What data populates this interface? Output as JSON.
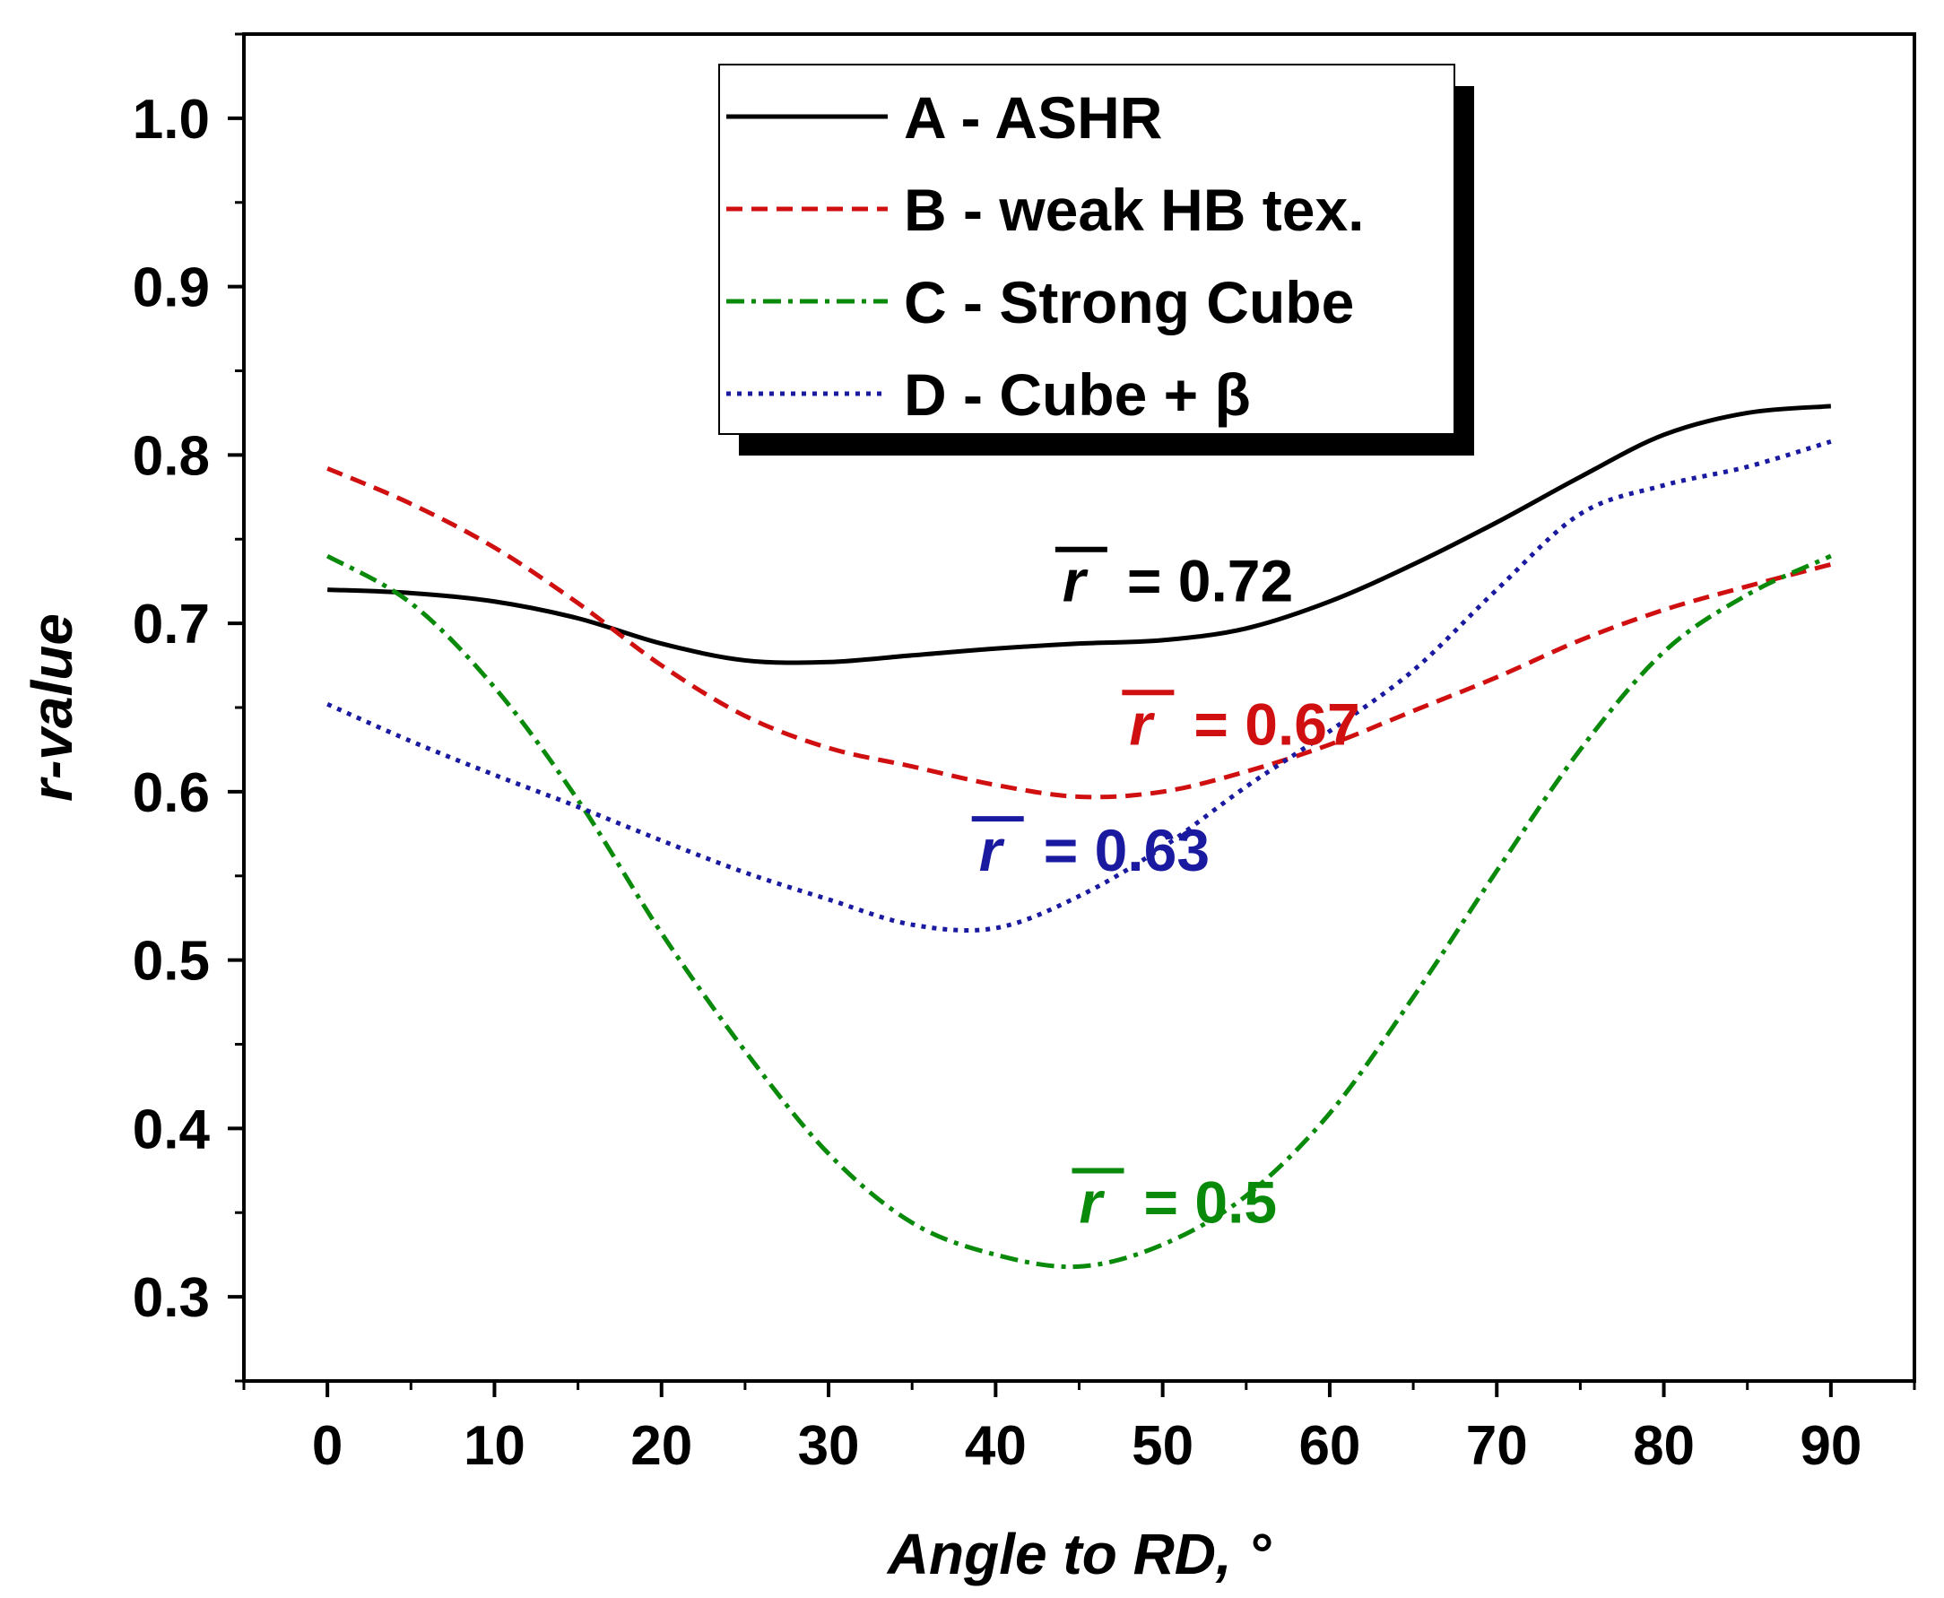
{
  "chart_data": {
    "type": "line",
    "xlabel": "Angle to RD, °",
    "ylabel": "r-value",
    "xlim": [
      -5,
      95
    ],
    "ylim": [
      0.25,
      1.05
    ],
    "xticks": [
      "0",
      "10",
      "20",
      "30",
      "40",
      "50",
      "60",
      "70",
      "80",
      "90"
    ],
    "yticks": [
      "0.3",
      "0.4",
      "0.5",
      "0.6",
      "0.7",
      "0.8",
      "0.9",
      "1.0"
    ],
    "grid": false,
    "legend_position": "top-center",
    "series": [
      {
        "name": "A - ASHR",
        "color": "#000000",
        "style": "solid",
        "x": [
          0,
          5,
          10,
          15,
          20,
          25,
          30,
          35,
          40,
          45,
          50,
          55,
          60,
          65,
          70,
          75,
          80,
          85,
          90
        ],
        "y": [
          0.72,
          0.718,
          0.713,
          0.703,
          0.688,
          0.678,
          0.677,
          0.681,
          0.685,
          0.688,
          0.69,
          0.697,
          0.713,
          0.735,
          0.76,
          0.787,
          0.812,
          0.825,
          0.829
        ]
      },
      {
        "name": "B - weak HB tex.",
        "color": "#d01010",
        "style": "dashed",
        "x": [
          0,
          5,
          10,
          15,
          20,
          25,
          30,
          35,
          40,
          45,
          50,
          55,
          60,
          65,
          70,
          75,
          80,
          85,
          90
        ],
        "y": [
          0.792,
          0.771,
          0.745,
          0.712,
          0.675,
          0.645,
          0.626,
          0.615,
          0.604,
          0.597,
          0.6,
          0.612,
          0.628,
          0.648,
          0.668,
          0.69,
          0.708,
          0.722,
          0.735
        ]
      },
      {
        "name": "C - Strong Cube",
        "color": "#0a8a0a",
        "style": "dashdot",
        "x": [
          0,
          5,
          10,
          15,
          20,
          25,
          30,
          35,
          40,
          45,
          50,
          55,
          60,
          65,
          70,
          75,
          80,
          85,
          90
        ],
        "y": [
          0.74,
          0.712,
          0.662,
          0.595,
          0.516,
          0.446,
          0.385,
          0.344,
          0.325,
          0.318,
          0.331,
          0.36,
          0.409,
          0.478,
          0.553,
          0.625,
          0.683,
          0.717,
          0.74
        ]
      },
      {
        "name": "D - Cube + β",
        "color": "#1a1aa0",
        "style": "dotted",
        "x": [
          0,
          5,
          10,
          15,
          20,
          25,
          30,
          35,
          40,
          45,
          50,
          55,
          60,
          65,
          70,
          75,
          80,
          85,
          90
        ],
        "y": [
          0.652,
          0.63,
          0.61,
          0.591,
          0.571,
          0.552,
          0.536,
          0.521,
          0.519,
          0.538,
          0.567,
          0.603,
          0.636,
          0.672,
          0.72,
          0.765,
          0.782,
          0.793,
          0.808
        ]
      }
    ],
    "annotations": [
      {
        "symbol": "r",
        "text": "= 0.72",
        "color": "#000000",
        "x": 44,
        "y": 0.713
      },
      {
        "symbol": "r",
        "text": "= 0.67",
        "color": "#d01010",
        "x": 48,
        "y": 0.628
      },
      {
        "symbol": "r",
        "text": "= 0.63",
        "color": "#1a1aa0",
        "x": 39,
        "y": 0.553
      },
      {
        "symbol": "r",
        "text": "= 0.5",
        "color": "#0a8a0a",
        "x": 45,
        "y": 0.344
      }
    ]
  }
}
